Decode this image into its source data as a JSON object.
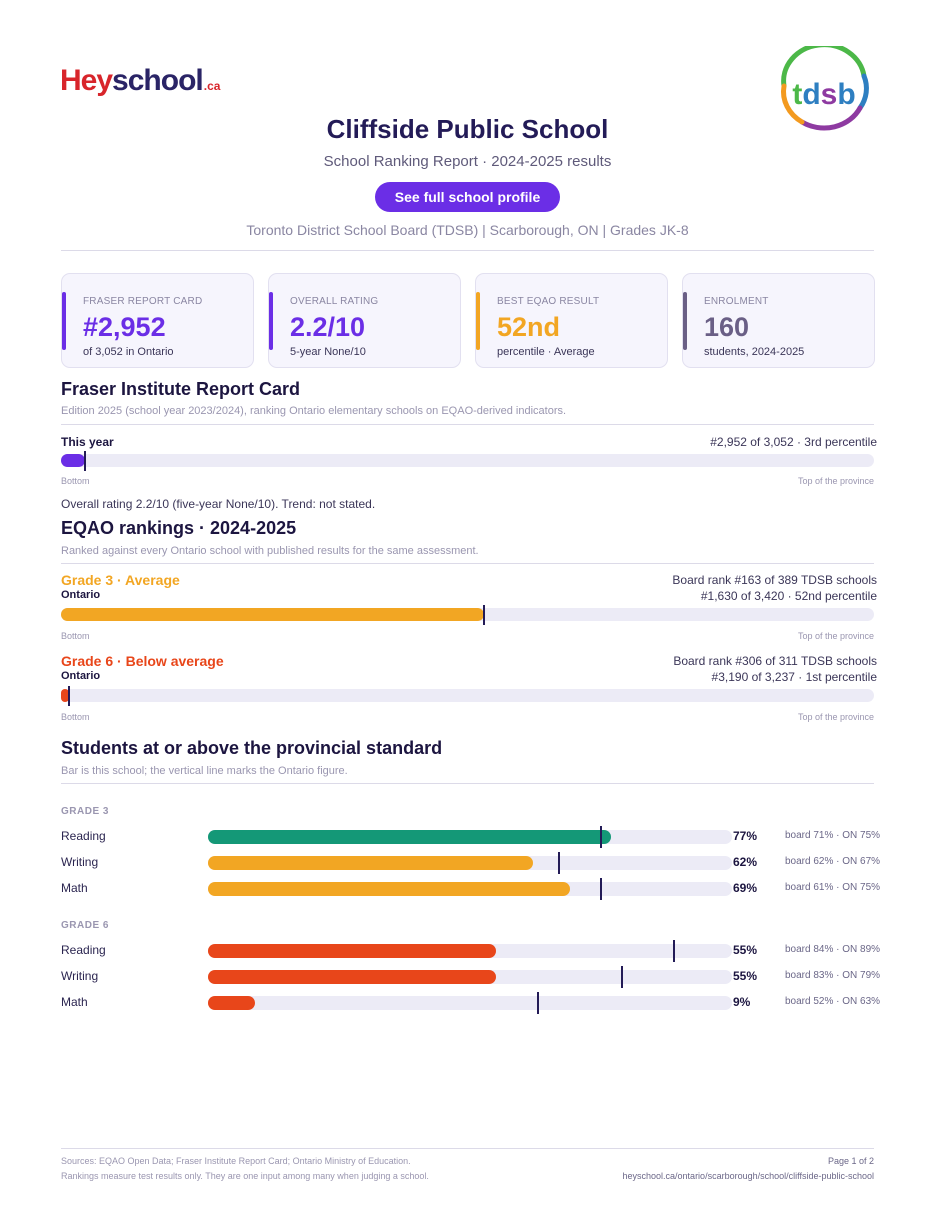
{
  "header": {
    "logo_hey": "Hey",
    "logo_school": "school",
    "logo_ca": ".ca",
    "board_logo_text": "tdsb",
    "school_name": "Cliffside Public School",
    "subtitle": "School Ranking Report  ·  2024-2025 results",
    "profile_button": "See full school profile",
    "meta_line": "Toronto District School Board (TDSB)  |  Scarborough, ON  |  Grades JK-8"
  },
  "colors": {
    "purple": "#6b2ee6",
    "orange": "#f2a623",
    "red": "#e8461a",
    "green": "#149877",
    "slate": "#6a5f86"
  },
  "cards": [
    {
      "label": "FRASER REPORT CARD",
      "value": "#2,952",
      "sub": "of 3,052 in Ontario"
    },
    {
      "label": "OVERALL RATING",
      "value": "2.2/10",
      "sub": "5-year None/10"
    },
    {
      "label": "BEST EQAO RESULT",
      "value": "52nd",
      "sub": "percentile  ·  Average"
    },
    {
      "label": "ENROLMENT",
      "value": "160",
      "sub": "students, 2024-2025"
    }
  ],
  "fraser": {
    "title": "Fraser Institute Report Card",
    "note": "Edition 2025 (school year 2023/2024), ranking Ontario elementary schools on EQAO-derived indicators.",
    "row_label": "This year",
    "row_right": "#2,952 of 3,052  ·  3rd percentile",
    "percentile": 3,
    "bottom_label": "Bottom",
    "top_label": "Top of the province",
    "overall_text": "Overall rating 2.2/10 (five-year None/10). Trend: not stated."
  },
  "eqao": {
    "title": "EQAO rankings  ·  2024-2025",
    "note": "Ranked against every Ontario school with published results for the same assessment.",
    "grades": [
      {
        "head": "Grade 3  ·  Average",
        "scope": "Ontario",
        "board_rank": "Board rank #163 of 389 TDSB schools",
        "provincial_rank": "#1,630 of 3,420  ·  52nd percentile",
        "percentile": 52,
        "bottom_label": "Bottom",
        "top_label": "Top of the province"
      },
      {
        "head": "Grade 6  ·  Below average",
        "scope": "Ontario",
        "board_rank": "Board rank #306 of 311 TDSB schools",
        "provincial_rank": "#3,190 of 3,237  ·  1st percentile",
        "percentile": 1,
        "bottom_label": "Bottom",
        "top_label": "Top of the province"
      }
    ]
  },
  "standard": {
    "title": "Students at or above the provincial standard",
    "note": "Bar is this school; the vertical line marks the Ontario figure.",
    "groups": [
      {
        "label": "GRADE 3",
        "rows": [
          {
            "subject": "Reading",
            "school": 77,
            "ontario": 75,
            "pct": "77%",
            "cmp": "board 71%  ·  ON 75%"
          },
          {
            "subject": "Writing",
            "school": 62,
            "ontario": 67,
            "pct": "62%",
            "cmp": "board 62%  ·  ON 67%"
          },
          {
            "subject": "Math",
            "school": 69,
            "ontario": 75,
            "pct": "69%",
            "cmp": "board 61%  ·  ON 75%"
          }
        ]
      },
      {
        "label": "GRADE 6",
        "rows": [
          {
            "subject": "Reading",
            "school": 55,
            "ontario": 89,
            "pct": "55%",
            "cmp": "board 84%  ·  ON 89%"
          },
          {
            "subject": "Writing",
            "school": 55,
            "ontario": 79,
            "pct": "55%",
            "cmp": "board 83%  ·  ON 79%"
          },
          {
            "subject": "Math",
            "school": 9,
            "ontario": 63,
            "pct": "9%",
            "cmp": "board 52%  ·  ON 63%"
          }
        ]
      }
    ]
  },
  "footer": {
    "sources": "Sources: EQAO Open Data; Fraser Institute Report Card; Ontario Ministry of Education.",
    "disclaimer": "Rankings measure test results only. They are one input among many when judging a school.",
    "page": "Page 1 of 2",
    "url": "heyschool.ca/ontario/scarborough/school/cliffside-public-school"
  }
}
